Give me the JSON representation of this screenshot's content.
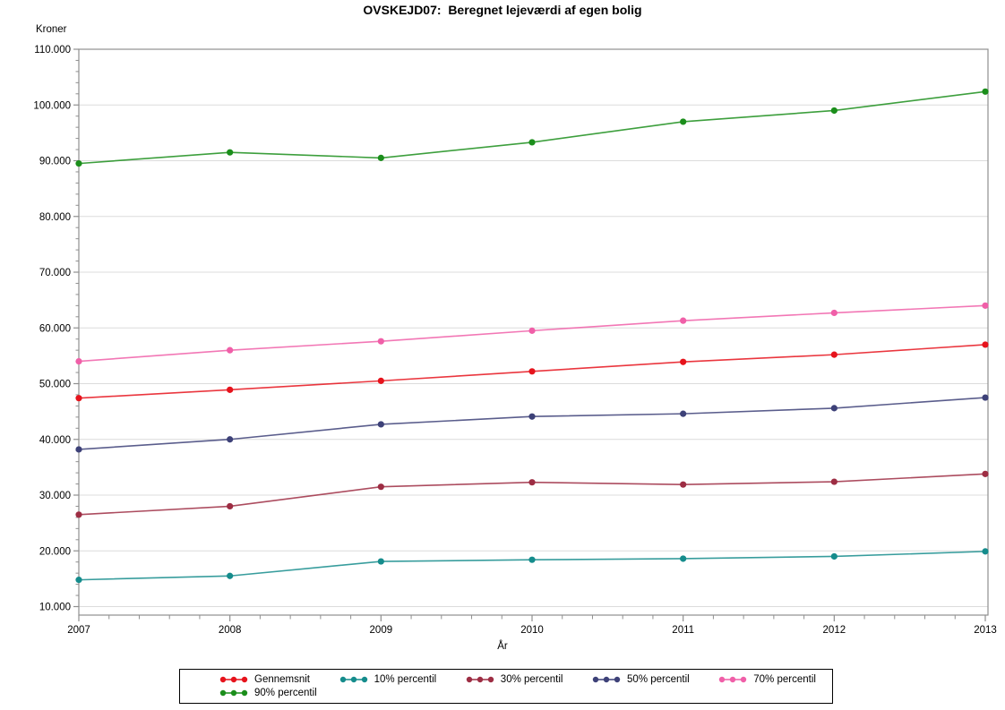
{
  "title": "OVSKEJD07:  Beregnet lejeværdi af egen bolig",
  "chart_data": {
    "type": "line",
    "title": "OVSKEJD07:  Beregnet lejeværdi af egen bolig",
    "ylabel": "Kroner",
    "xlabel": "År",
    "x": [
      2007,
      2008,
      2009,
      2010,
      2011,
      2012,
      2013
    ],
    "x_tick_labels": [
      "2007",
      "2008",
      "2009",
      "2010",
      "2011",
      "2012",
      "2013"
    ],
    "y_ticks": [
      {
        "value": 10000,
        "label": "10.000"
      },
      {
        "value": 20000,
        "label": "20.000"
      },
      {
        "value": 30000,
        "label": "30.000"
      },
      {
        "value": 40000,
        "label": "40.000"
      },
      {
        "value": 50000,
        "label": "50.000"
      },
      {
        "value": 60000,
        "label": "60.000"
      },
      {
        "value": 70000,
        "label": "70.000"
      },
      {
        "value": 80000,
        "label": "80.000"
      },
      {
        "value": 90000,
        "label": "90.000"
      },
      {
        "value": 100000,
        "label": "100.000"
      },
      {
        "value": 110000,
        "label": "110.000"
      }
    ],
    "ylim": [
      10000,
      110000
    ],
    "y_minor_step": 2000,
    "x_minor_intervals_per_year": 5,
    "grid": "horizontal-only",
    "legend_position": "bottom",
    "series": [
      {
        "name": "Gennemsnit",
        "color": "#e6131c",
        "values": [
          47400,
          48900,
          50500,
          52200,
          53900,
          55200,
          57000
        ]
      },
      {
        "name": "10% percentil",
        "color": "#158c8c",
        "values": [
          14800,
          15500,
          18100,
          18400,
          18600,
          19000,
          19900
        ]
      },
      {
        "name": "30% percentil",
        "color": "#9d2d43",
        "values": [
          26500,
          28000,
          31500,
          32300,
          31900,
          32400,
          33800
        ]
      },
      {
        "name": "50% percentil",
        "color": "#3d4178",
        "values": [
          38200,
          40000,
          42700,
          44100,
          44600,
          45600,
          47500
        ]
      },
      {
        "name": "70% percentil",
        "color": "#f05fa8",
        "values": [
          54000,
          56000,
          57600,
          59500,
          61300,
          62700,
          64000
        ]
      },
      {
        "name": "90% percentil",
        "color": "#1b8e1b",
        "values": [
          89500,
          91500,
          90500,
          93300,
          97000,
          99000,
          102400
        ]
      }
    ],
    "frame_color": "#8f8f8f",
    "grid_color": "#dcdcdc"
  }
}
